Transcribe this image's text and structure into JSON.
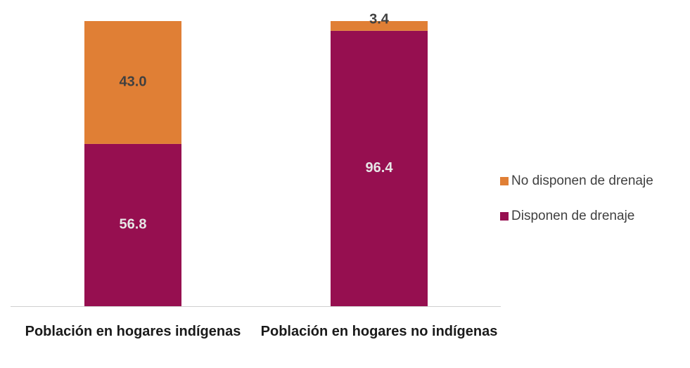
{
  "chart_data": {
    "type": "stacked_bar",
    "categories": [
      "Población en hogares indígenas",
      "Población en hogares no indígenas"
    ],
    "series": [
      {
        "name": "Disponen de drenaje",
        "color": "#960f50",
        "values": [
          56.8,
          96.4
        ]
      },
      {
        "name": "No disponen de drenaje",
        "color": "#e07f35",
        "values": [
          43.0,
          3.4
        ]
      }
    ],
    "value_labels": [
      [
        "56.8",
        "96.4"
      ],
      [
        "43.0",
        "3.4"
      ]
    ],
    "legend": "right"
  }
}
